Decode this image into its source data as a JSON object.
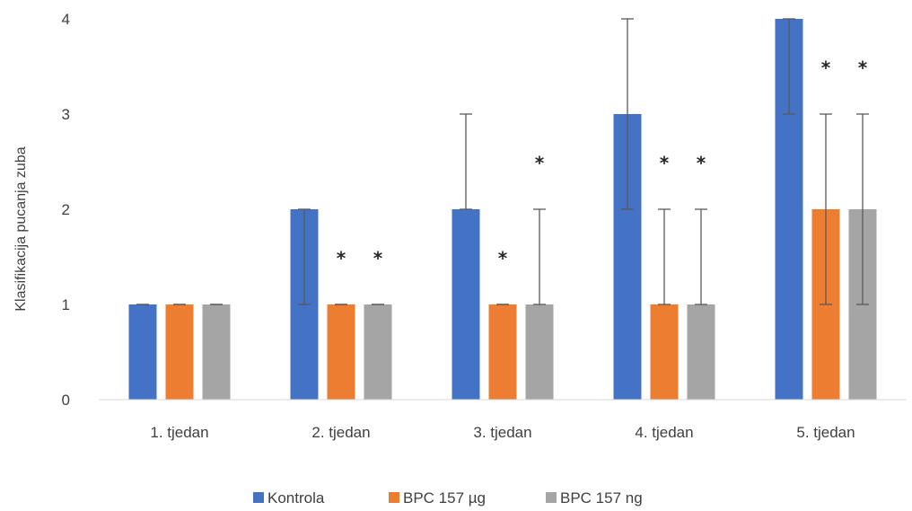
{
  "chart_data": {
    "type": "bar",
    "title": "",
    "xlabel": "",
    "ylabel": "Klasifikacija pucanja zuba",
    "ylim": [
      0,
      4
    ],
    "yticks": [
      0,
      1,
      2,
      3,
      4
    ],
    "grid": false,
    "legend_position": "bottom",
    "categories": [
      "1. tjedan",
      "2. tjedan",
      "3. tjedan",
      "4. tjedan",
      "5. tjedan"
    ],
    "series": [
      {
        "name": "Kontrola",
        "color": "#4472C4",
        "values": [
          1,
          2,
          2,
          3,
          4
        ],
        "err_low": [
          1,
          1,
          2,
          2,
          3
        ],
        "err_high": [
          1,
          2,
          3,
          4,
          4
        ]
      },
      {
        "name": "BPC 157 µg",
        "color": "#ED7D31",
        "values": [
          1,
          1,
          1,
          1,
          2
        ],
        "err_low": [
          1,
          1,
          1,
          1,
          1
        ],
        "err_high": [
          1,
          1,
          1,
          2,
          3
        ]
      },
      {
        "name": "BPC 157 ng",
        "color": "#A5A5A5",
        "values": [
          1,
          1,
          1,
          1,
          2
        ],
        "err_low": [
          1,
          1,
          1,
          1,
          1
        ],
        "err_high": [
          1,
          1,
          2,
          2,
          3
        ]
      }
    ],
    "annotations": {
      "symbol": "*",
      "marked": [
        {
          "category": "2. tjedan",
          "series": [
            "BPC 157 µg",
            "BPC 157 ng"
          ]
        },
        {
          "category": "3. tjedan",
          "series": [
            "BPC 157 µg",
            "BPC 157 ng"
          ]
        },
        {
          "category": "4. tjedan",
          "series": [
            "BPC 157 µg",
            "BPC 157 ng"
          ]
        },
        {
          "category": "5. tjedan",
          "series": [
            "BPC 157 µg",
            "BPC 157 ng"
          ]
        }
      ]
    }
  }
}
